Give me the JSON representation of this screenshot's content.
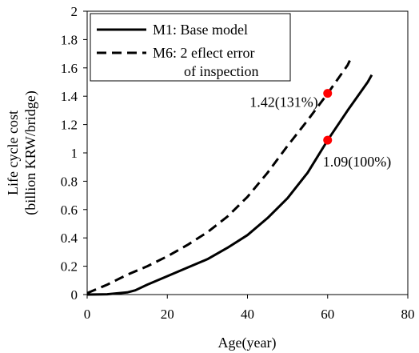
{
  "chart_data": {
    "type": "line",
    "xlabel": "Age(year)",
    "ylabel_line1": "Life cycle cost",
    "ylabel_line2": "(billion KRW/bridge)",
    "xlim": [
      0,
      80
    ],
    "ylim": [
      0,
      2
    ],
    "x_ticks": [
      "0",
      "20",
      "40",
      "60",
      "80"
    ],
    "y_ticks": [
      "0",
      "0.2",
      "0.4",
      "0.6",
      "0.8",
      "1",
      "1.2",
      "1.4",
      "1.6",
      "1.8",
      "2"
    ],
    "grid": false,
    "legend_position": "top-left",
    "series": [
      {
        "name": "M1: Base model",
        "style": "solid",
        "color": "#000000",
        "x": [
          0,
          5,
          10,
          12,
          15,
          20,
          25,
          30,
          35,
          40,
          45,
          50,
          55,
          60,
          65,
          70,
          71
        ],
        "y": [
          0,
          0.002,
          0.015,
          0.03,
          0.07,
          0.13,
          0.19,
          0.25,
          0.33,
          0.42,
          0.54,
          0.68,
          0.86,
          1.09,
          1.3,
          1.5,
          1.55
        ]
      },
      {
        "name_line1": "M6: 2 eflect error",
        "name_line2": "of inspection",
        "style": "dashed",
        "color": "#000000",
        "x": [
          0,
          5,
          10,
          15,
          20,
          25,
          30,
          35,
          40,
          45,
          50,
          55,
          60,
          65,
          66
        ],
        "y": [
          0.01,
          0.07,
          0.14,
          0.2,
          0.27,
          0.35,
          0.44,
          0.55,
          0.69,
          0.86,
          1.05,
          1.23,
          1.42,
          1.62,
          1.68
        ]
      }
    ],
    "points": [
      {
        "x": 60,
        "y": 1.42,
        "color": "#ff0000",
        "label": "1.42(131%)"
      },
      {
        "x": 60,
        "y": 1.09,
        "color": "#ff0000",
        "label": "1.09(100%)"
      }
    ]
  }
}
